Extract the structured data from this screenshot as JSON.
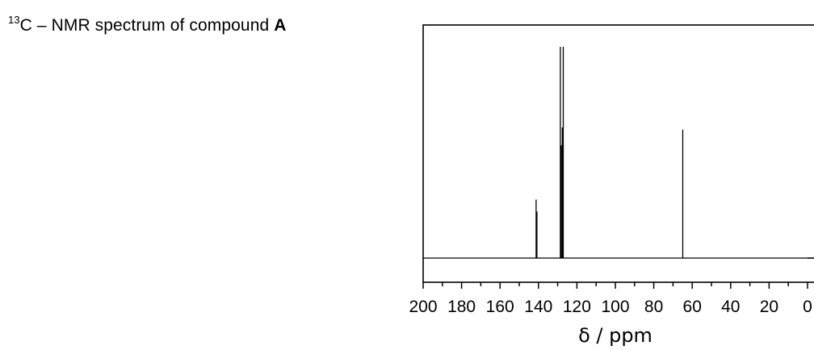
{
  "chart_data": {
    "type": "line",
    "title": {
      "isotope_superscript": "13",
      "text": "C – NMR spectrum of compound ",
      "compound": "A"
    },
    "xlabel": "δ / ppm",
    "xlim": [
      200,
      0
    ],
    "ylim": [
      0,
      1
    ],
    "x_reversed": true,
    "x_ticks": [
      200,
      180,
      160,
      140,
      120,
      100,
      80,
      60,
      40,
      20,
      0
    ],
    "x_tick_labels": [
      "200",
      "180",
      "160",
      "140",
      "120",
      "100",
      "80",
      "60",
      "40",
      "20",
      "0"
    ],
    "x_minor_tick_step": 10,
    "baseline": 0.112,
    "grid": false,
    "legend": "none",
    "series": [
      {
        "peaks": [
          {
            "x": 141.2,
            "y": 0.355
          },
          {
            "x": 140.8,
            "y": 0.305
          },
          {
            "x": 128.6,
            "y": 0.99
          },
          {
            "x": 128.2,
            "y": 0.58
          },
          {
            "x": 127.6,
            "y": 0.655
          },
          {
            "x": 127.1,
            "y": 0.99
          },
          {
            "x": 64.9,
            "y": 0.645
          }
        ]
      }
    ],
    "colors": {
      "line": "#000000",
      "axis": "#000000"
    }
  }
}
